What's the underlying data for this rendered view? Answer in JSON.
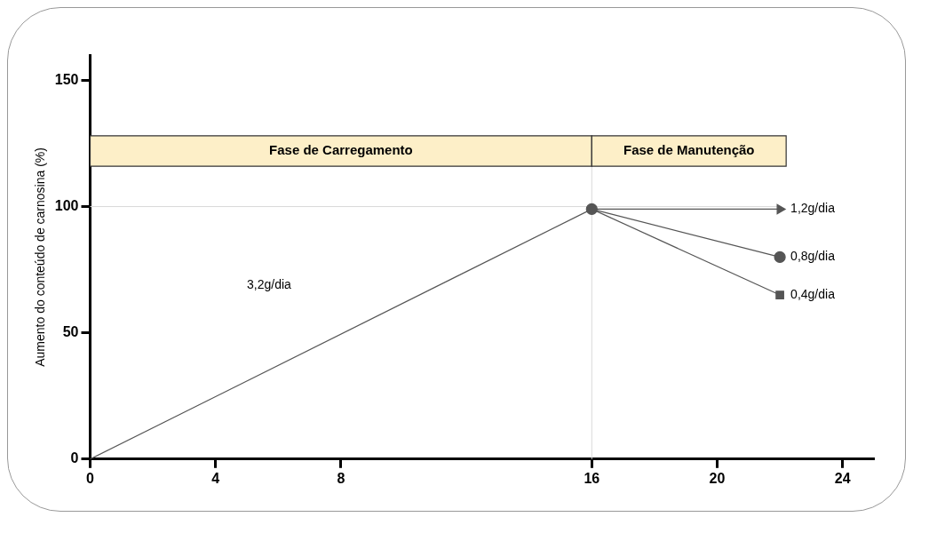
{
  "chart_data": {
    "type": "line",
    "ylabel": "Aumento do conteúdo de carnosina (%)",
    "xlim": [
      0,
      25
    ],
    "xticks": [
      0,
      4,
      8,
      16,
      20,
      24
    ],
    "ylim": [
      0,
      160
    ],
    "yticks": [
      0,
      50,
      100,
      150
    ],
    "grid": false,
    "legend": false,
    "line_style": "solid",
    "series": [
      {
        "color": "#555555",
        "x": [
          0,
          16
        ],
        "values": [
          0,
          99
        ],
        "marker": "circle"
      },
      {
        "name": "1,2g/dia",
        "color": "#555555",
        "x": [
          16,
          22
        ],
        "values": [
          99,
          99
        ],
        "marker": "triangle"
      },
      {
        "name": "0,8g/dia",
        "color": "#555555",
        "x": [
          16,
          22
        ],
        "values": [
          99,
          80
        ],
        "marker": "circle"
      },
      {
        "name": "0,4g/dia",
        "color": "#555555",
        "x": [
          16,
          22
        ],
        "values": [
          99,
          65
        ],
        "marker": "square"
      }
    ],
    "bands": [
      {
        "axis": "x",
        "from": 0,
        "to": 16,
        "label": "Fase de Carregamento",
        "color": "#fdefc8"
      },
      {
        "axis": "x",
        "from": 16,
        "to": 22.2,
        "label": "Fase de Manutenção",
        "color": "#fdefc8"
      }
    ],
    "ref_lines": [
      {
        "axis": "y",
        "value": 100,
        "color": "#d9d9d9"
      },
      {
        "axis": "x",
        "value": 16,
        "color": "#d9d9d9"
      }
    ],
    "annotations": [
      "3,2g/dia"
    ]
  }
}
